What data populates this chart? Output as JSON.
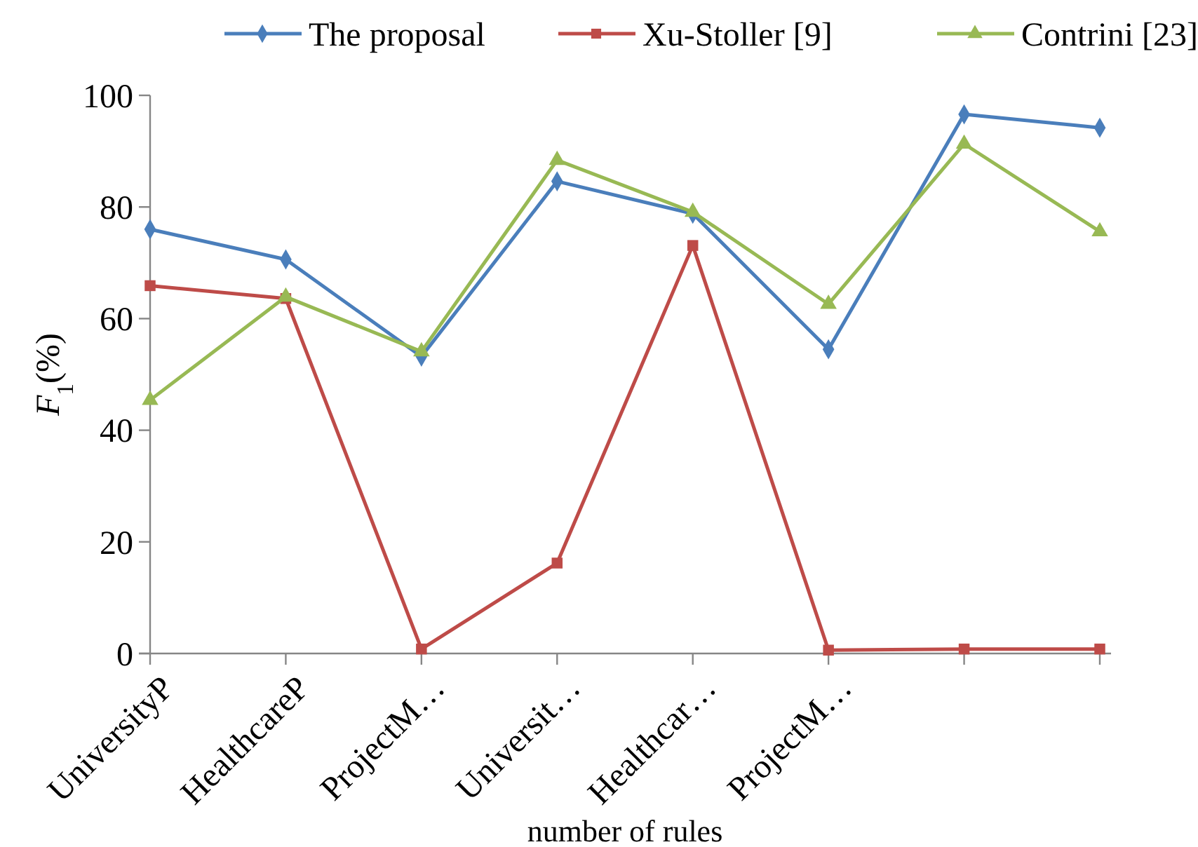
{
  "chart_data": {
    "type": "line",
    "xlabel": "number of rules",
    "ylabel": "F$_{1}$(%)",
    "categories": [
      "UniversityP",
      "HealthcareP",
      "ProjectM…",
      "Universit…",
      "Healthcar…",
      "ProjectM…",
      null,
      null
    ],
    "series": [
      {
        "name": "The proposal",
        "color": "#4a7ebb",
        "marker": "diamond",
        "values": [
          76,
          70.6,
          53.2,
          84.6,
          78.8,
          54.5,
          96.6,
          94.2
        ]
      },
      {
        "name": "Xu-Stoller [9]",
        "color": "#be4b48",
        "marker": "square",
        "values": [
          65.9,
          63.6,
          0.8,
          16.2,
          73.1,
          0.6,
          0.8,
          0.8
        ]
      },
      {
        "name": "Contrini [23]",
        "color": "#98b954",
        "marker": "triangle",
        "values": [
          45.4,
          63.9,
          54.1,
          88.4,
          79.1,
          62.6,
          91.3,
          75.6
        ]
      }
    ],
    "ylim": [
      0,
      100
    ],
    "yticks": [
      0,
      20,
      40,
      60,
      80,
      100
    ],
    "grid": false,
    "legend": "top",
    "line_style": "solid"
  }
}
